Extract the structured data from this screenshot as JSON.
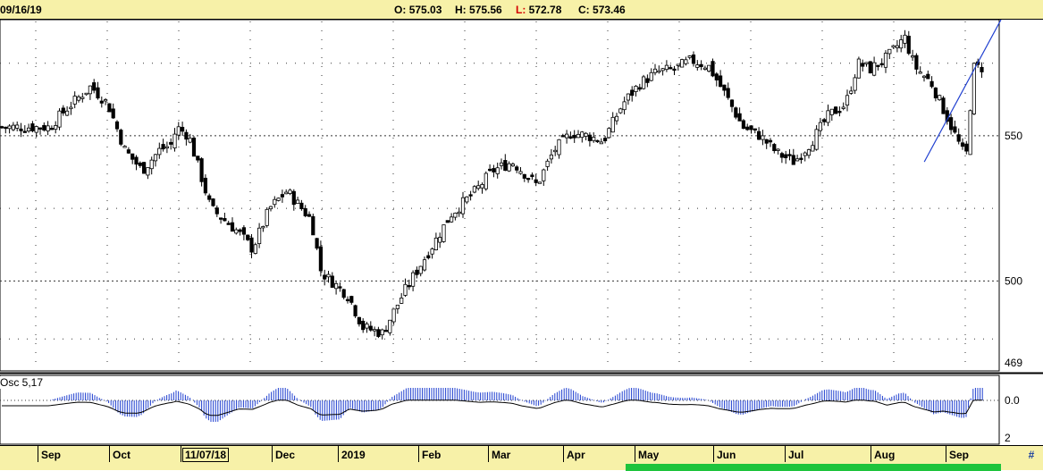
{
  "header": {
    "date": "09/16/19",
    "open_key": "O:",
    "open_val": "575.03",
    "high_key": "H:",
    "high_val": "575.56",
    "low_key": "L:",
    "low_val": "572.78",
    "close_key": "C:",
    "close_val": "573.46"
  },
  "indicator": {
    "label": "Osc 5,17"
  },
  "scroll": {
    "corner_label": "#"
  },
  "colors": {
    "panel": "#f7f1a8",
    "trendline": "#1f3fd0",
    "candles": "#000000",
    "oscillator": "#1f3fd0"
  },
  "chart_data": [
    {
      "type": "candlestick",
      "title": "",
      "y_axis_ticks": [
        "550",
        "500",
        "469"
      ],
      "ylim": [
        469,
        590
      ],
      "x_tick_labels": [
        "Sep",
        "Oct",
        "11/07/18",
        "Dec",
        "2019",
        "Feb",
        "Mar",
        "Apr",
        "May",
        "Jun",
        "Jul",
        "Aug",
        "Sep"
      ],
      "grid": "dotted",
      "approx_close_path": [
        {
          "date": "2018-09-04",
          "close": 553
        },
        {
          "date": "2018-09-12",
          "close": 560
        },
        {
          "date": "2018-09-21",
          "close": 567
        },
        {
          "date": "2018-09-28",
          "close": 561
        },
        {
          "date": "2018-10-05",
          "close": 545
        },
        {
          "date": "2018-10-12",
          "close": 538
        },
        {
          "date": "2018-10-19",
          "close": 545
        },
        {
          "date": "2018-10-24",
          "close": 547
        },
        {
          "date": "2018-10-26",
          "close": 553
        },
        {
          "date": "2018-10-31",
          "close": 550
        },
        {
          "date": "2018-11-09",
          "close": 525
        },
        {
          "date": "2018-11-20",
          "close": 517
        },
        {
          "date": "2018-11-26",
          "close": 511
        },
        {
          "date": "2018-12-03",
          "close": 525
        },
        {
          "date": "2018-12-10",
          "close": 531
        },
        {
          "date": "2018-12-20",
          "close": 521
        },
        {
          "date": "2018-12-24",
          "close": 503
        },
        {
          "date": "2019-01-04",
          "close": 495
        },
        {
          "date": "2019-01-10",
          "close": 484
        },
        {
          "date": "2019-01-18",
          "close": 482
        },
        {
          "date": "2019-01-28",
          "close": 498
        },
        {
          "date": "2019-02-08",
          "close": 513
        },
        {
          "date": "2019-02-15",
          "close": 523
        },
        {
          "date": "2019-02-25",
          "close": 531
        },
        {
          "date": "2019-03-04",
          "close": 538
        },
        {
          "date": "2019-03-12",
          "close": 541
        },
        {
          "date": "2019-03-22",
          "close": 533
        },
        {
          "date": "2019-03-29",
          "close": 545
        },
        {
          "date": "2019-04-05",
          "close": 551
        },
        {
          "date": "2019-04-12",
          "close": 550
        },
        {
          "date": "2019-04-18",
          "close": 548
        },
        {
          "date": "2019-04-26",
          "close": 561
        },
        {
          "date": "2019-05-03",
          "close": 568
        },
        {
          "date": "2019-05-10",
          "close": 572
        },
        {
          "date": "2019-05-17",
          "close": 573
        },
        {
          "date": "2019-05-24",
          "close": 576
        },
        {
          "date": "2019-05-31",
          "close": 574
        },
        {
          "date": "2019-06-07",
          "close": 564
        },
        {
          "date": "2019-06-14",
          "close": 553
        },
        {
          "date": "2019-06-21",
          "close": 550
        },
        {
          "date": "2019-06-28",
          "close": 544
        },
        {
          "date": "2019-07-05",
          "close": 541
        },
        {
          "date": "2019-07-12",
          "close": 548
        },
        {
          "date": "2019-07-19",
          "close": 557
        },
        {
          "date": "2019-07-26",
          "close": 561
        },
        {
          "date": "2019-07-31",
          "close": 575
        },
        {
          "date": "2019-08-05",
          "close": 573
        },
        {
          "date": "2019-08-12",
          "close": 577
        },
        {
          "date": "2019-08-19",
          "close": 584
        },
        {
          "date": "2019-08-23",
          "close": 574
        },
        {
          "date": "2019-08-30",
          "close": 568
        },
        {
          "date": "2019-09-06",
          "close": 555
        },
        {
          "date": "2019-09-13",
          "close": 542
        },
        {
          "date": "2019-09-16",
          "close": 573.46
        }
      ],
      "trendline": "rising line drawn from the August low through the last bars"
    },
    {
      "type": "bar",
      "title": "Osc 5,17",
      "y_axis_ticks": [
        "0.0",
        "2"
      ],
      "signal_line": true
    }
  ]
}
